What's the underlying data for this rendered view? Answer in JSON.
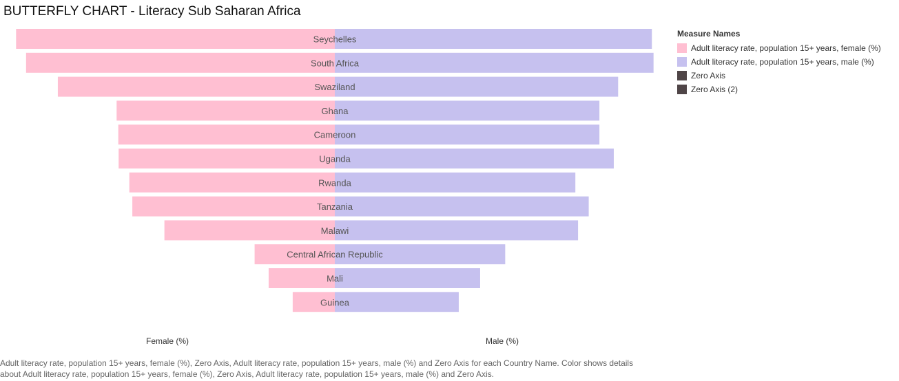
{
  "title": "BUTTERFLY CHART - Literacy Sub Saharan Africa",
  "legend": {
    "title": "Measure Names",
    "items": [
      {
        "label": "Adult literacy rate, population 15+ years, female (%)",
        "color": "#ffbfd2"
      },
      {
        "label": "Adult literacy rate, population 15+ years, male (%)",
        "color": "#c6c1ef"
      },
      {
        "label": "Zero Axis",
        "color": "#4f4547"
      },
      {
        "label": "Zero Axis (2)",
        "color": "#4f4547"
      }
    ]
  },
  "caption": "Adult literacy rate, population 15+ years, female (%), Zero Axis, Adult literacy rate, population 15+ years, male (%) and Zero Axis for each Country Name.  Color shows details about Adult literacy rate, population 15+ years, female (%), Zero Axis, Adult literacy rate, population 15+ years, male (%) and Zero Axis.",
  "chart_data": {
    "type": "bar",
    "orientation": "horizontal-butterfly",
    "title": "BUTTERFLY CHART - Literacy Sub Saharan Africa",
    "categories": [
      "Seychelles",
      "South Africa",
      "Swaziland",
      "Ghana",
      "Cameroon",
      "Uganda",
      "Rwanda",
      "Tanzania",
      "Malawi",
      "Central African Republic",
      "Mali",
      "Guinea"
    ],
    "series": [
      {
        "name": "Adult literacy rate, population 15+ years, female (%)",
        "side": "left",
        "color": "#ffbfd2",
        "values": [
          95.4,
          92.4,
          82.9,
          65.3,
          64.8,
          64.7,
          61.5,
          60.6,
          51.0,
          24.0,
          19.8,
          12.6
        ]
      },
      {
        "name": "Adult literacy rate, population 15+ years, male (%)",
        "side": "right",
        "color": "#c6c1ef",
        "values": [
          94.9,
          95.4,
          84.8,
          79.2,
          79.2,
          83.5,
          72.0,
          76.0,
          72.8,
          51.0,
          43.5,
          37.1
        ]
      }
    ],
    "xlabels": {
      "left": "Female (%)",
      "right": "Male (%)"
    },
    "xlim": [
      0,
      100
    ]
  }
}
